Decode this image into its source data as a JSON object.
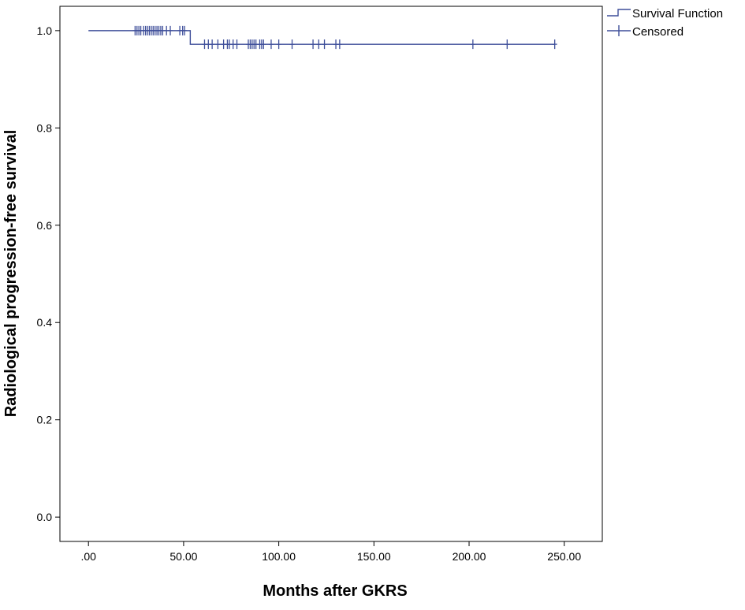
{
  "chart_data": {
    "type": "line",
    "title": "",
    "xlabel": "Months after GKRS",
    "ylabel": "Radiological progression-free survival",
    "xlim": [
      -15,
      270
    ],
    "ylim": [
      -0.05,
      1.05
    ],
    "x_ticks": [
      0,
      50,
      100,
      150,
      200,
      250
    ],
    "x_tick_labels": [
      ".00",
      "50.00",
      "100.00",
      "150.00",
      "200.00",
      "250.00"
    ],
    "y_ticks": [
      0,
      0.2,
      0.4,
      0.6,
      0.8,
      1.0
    ],
    "y_tick_labels": [
      "0.0",
      "0.2",
      "0.4",
      "0.6",
      "0.8",
      "1.0"
    ],
    "grid": false,
    "legend_position": "top-right",
    "series": [
      {
        "name": "Survival Function",
        "kind": "step",
        "color": "#3f4f9a",
        "x": [
          0,
          53.5,
          245
        ],
        "y": [
          1.0,
          0.972,
          0.972
        ]
      },
      {
        "name": "Censored",
        "kind": "censor-marks",
        "color": "#3f4f9a",
        "x": [
          24.5,
          25.5,
          26.5,
          27.5,
          29,
          30,
          31,
          32,
          33,
          34,
          35,
          36,
          37,
          38,
          39,
          41,
          43,
          48,
          49.5,
          50.5,
          61,
          63,
          65,
          68,
          71,
          73,
          74,
          76,
          78,
          84,
          85,
          86,
          87,
          88,
          90,
          91,
          92,
          96,
          100,
          107,
          118,
          121,
          124,
          130,
          132,
          202,
          220,
          245
        ],
        "y": [
          1.0,
          1.0,
          1.0,
          1.0,
          1.0,
          1.0,
          1.0,
          1.0,
          1.0,
          1.0,
          1.0,
          1.0,
          1.0,
          1.0,
          1.0,
          1.0,
          1.0,
          1.0,
          1.0,
          1.0,
          0.972,
          0.972,
          0.972,
          0.972,
          0.972,
          0.972,
          0.972,
          0.972,
          0.972,
          0.972,
          0.972,
          0.972,
          0.972,
          0.972,
          0.972,
          0.972,
          0.972,
          0.972,
          0.972,
          0.972,
          0.972,
          0.972,
          0.972,
          0.972,
          0.972,
          0.972,
          0.972,
          0.972
        ]
      }
    ]
  }
}
